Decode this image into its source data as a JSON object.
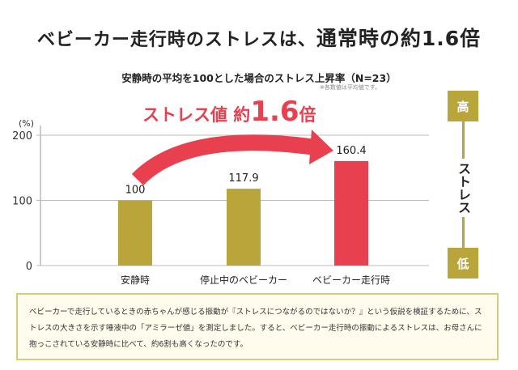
{
  "title": {
    "prefix": "ベビーカー走行時のストレスは、",
    "emphasis": "通常時の約1.6倍"
  },
  "callout": {
    "prefix": "ストレス値 約",
    "value": "1.6",
    "suffix": "倍"
  },
  "note": "※各数値は平均値です。",
  "stress_scale": {
    "high": "高",
    "label": "ストレス",
    "low": "低"
  },
  "description": "ベビーカーで走行しているときの赤ちゃんが感じる振動が『ストレスにつながるのではないか？』という仮説を検証するために、ストレスの大きさを示す唾液中の「アミラーゼ値」を測定しました。すると、ベビーカー走行時の振動によるストレスは、お母さんに抱っこされている安静時に比べて、約6割も高くなったのです。",
  "colors": {
    "base": "#b9a53a",
    "highlight": "#e8404f"
  },
  "chart_data": {
    "type": "bar",
    "title": "安静時の平均を100とした場合のストレス上昇率（N=23）",
    "ylabel": "(%)",
    "categories": [
      "安静時",
      "停止中のベビーカー",
      "ベビーカー走行時"
    ],
    "values": [
      100,
      117.9,
      160.4
    ],
    "value_labels": [
      "100",
      "117.9",
      "160.4"
    ],
    "yticks": [
      "0",
      "100",
      "200"
    ],
    "ylim": [
      0,
      200
    ],
    "grid": true
  }
}
